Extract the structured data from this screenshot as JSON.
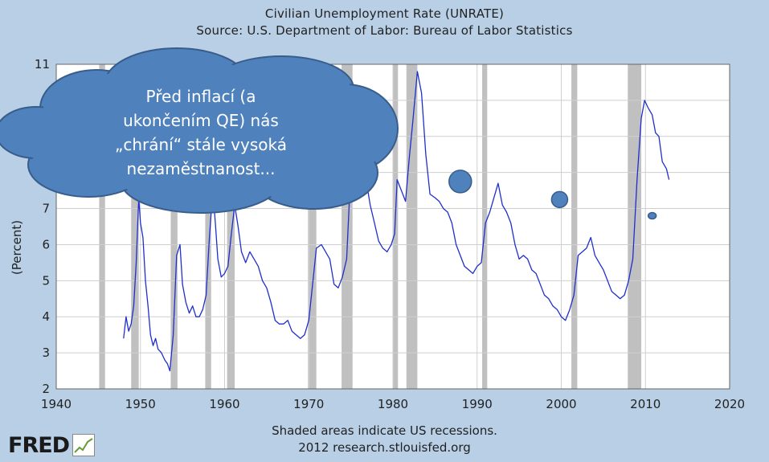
{
  "header": {
    "title": "Civilian Unemployment Rate (UNRATE)",
    "subtitle": "Source: U.S. Department of Labor: Bureau of Labor Statistics"
  },
  "footer": {
    "line1": "Shaded areas indicate US recessions.",
    "line2": "2012 research.stlouisfed.org",
    "logo_text": "FRED"
  },
  "callout": {
    "lines": [
      "Před inflací (a",
      "ukončením QE) nás",
      "„chrání“ stále vysoká",
      "nezaměstnanost..."
    ]
  },
  "colors": {
    "background": "#b8cfe6",
    "plot_background": "#ffffff",
    "line": "#1f2fcc",
    "recession_band": "#c0c0c0",
    "cloud_fill": "#4f81bd",
    "cloud_stroke": "#385d8a"
  },
  "chart_data": {
    "type": "line",
    "title": "Civilian Unemployment Rate (UNRATE)",
    "subtitle": "Source: U.S. Department of Labor: Bureau of Labor Statistics",
    "xlabel": "",
    "ylabel": "(Percent)",
    "xlim": [
      1940,
      2020
    ],
    "ylim": [
      2,
      11
    ],
    "x_ticks": [
      1940,
      1950,
      1960,
      1970,
      1980,
      1990,
      2000,
      2010,
      2020
    ],
    "y_ticks": [
      2,
      3,
      4,
      5,
      6,
      7,
      11
    ],
    "grid": true,
    "recessions": [
      [
        1945.1,
        1945.8
      ],
      [
        1948.9,
        1949.8
      ],
      [
        1953.6,
        1954.4
      ],
      [
        1957.7,
        1958.4
      ],
      [
        1960.3,
        1961.2
      ],
      [
        1969.9,
        1970.9
      ],
      [
        1973.9,
        1975.2
      ],
      [
        1980.0,
        1980.6
      ],
      [
        1981.6,
        1982.9
      ],
      [
        1990.6,
        1991.2
      ],
      [
        2001.2,
        2001.9
      ],
      [
        2007.9,
        2009.5
      ]
    ],
    "series": [
      {
        "values": [
          [
            1948.0,
            3.4
          ],
          [
            1948.3,
            4.0
          ],
          [
            1948.6,
            3.6
          ],
          [
            1948.9,
            3.8
          ],
          [
            1949.2,
            4.3
          ],
          [
            1949.5,
            5.5
          ],
          [
            1949.8,
            7.3
          ],
          [
            1950.0,
            6.6
          ],
          [
            1950.3,
            6.2
          ],
          [
            1950.6,
            5.0
          ],
          [
            1950.9,
            4.3
          ],
          [
            1951.2,
            3.5
          ],
          [
            1951.5,
            3.2
          ],
          [
            1951.8,
            3.4
          ],
          [
            1952.1,
            3.1
          ],
          [
            1952.5,
            3.0
          ],
          [
            1952.9,
            2.8
          ],
          [
            1953.2,
            2.7
          ],
          [
            1953.5,
            2.5
          ],
          [
            1953.9,
            3.5
          ],
          [
            1954.3,
            5.7
          ],
          [
            1954.7,
            6.0
          ],
          [
            1955.0,
            4.9
          ],
          [
            1955.4,
            4.4
          ],
          [
            1955.8,
            4.1
          ],
          [
            1956.2,
            4.3
          ],
          [
            1956.6,
            4.0
          ],
          [
            1957.0,
            4.0
          ],
          [
            1957.4,
            4.2
          ],
          [
            1957.8,
            4.6
          ],
          [
            1958.2,
            6.2
          ],
          [
            1958.6,
            7.5
          ],
          [
            1958.9,
            6.6
          ],
          [
            1959.2,
            5.6
          ],
          [
            1959.6,
            5.1
          ],
          [
            1960.0,
            5.2
          ],
          [
            1960.4,
            5.4
          ],
          [
            1960.8,
            6.3
          ],
          [
            1961.2,
            7.1
          ],
          [
            1961.6,
            6.5
          ],
          [
            1962.0,
            5.8
          ],
          [
            1962.5,
            5.5
          ],
          [
            1963.0,
            5.8
          ],
          [
            1963.5,
            5.6
          ],
          [
            1964.0,
            5.4
          ],
          [
            1964.5,
            5.0
          ],
          [
            1965.0,
            4.8
          ],
          [
            1965.5,
            4.4
          ],
          [
            1966.0,
            3.9
          ],
          [
            1966.5,
            3.8
          ],
          [
            1967.0,
            3.8
          ],
          [
            1967.5,
            3.9
          ],
          [
            1968.0,
            3.6
          ],
          [
            1968.5,
            3.5
          ],
          [
            1969.0,
            3.4
          ],
          [
            1969.5,
            3.5
          ],
          [
            1970.0,
            3.9
          ],
          [
            1970.5,
            5.0
          ],
          [
            1970.9,
            5.9
          ],
          [
            1971.5,
            6.0
          ],
          [
            1972.0,
            5.8
          ],
          [
            1972.5,
            5.6
          ],
          [
            1973.0,
            4.9
          ],
          [
            1973.5,
            4.8
          ],
          [
            1974.0,
            5.1
          ],
          [
            1974.5,
            5.6
          ],
          [
            1975.0,
            8.1
          ],
          [
            1975.4,
            8.9
          ],
          [
            1975.8,
            8.3
          ],
          [
            1976.3,
            7.7
          ],
          [
            1976.8,
            7.8
          ],
          [
            1977.3,
            7.1
          ],
          [
            1977.8,
            6.6
          ],
          [
            1978.3,
            6.1
          ],
          [
            1978.8,
            5.9
          ],
          [
            1979.3,
            5.8
          ],
          [
            1979.8,
            6.0
          ],
          [
            1980.2,
            6.3
          ],
          [
            1980.5,
            7.8
          ],
          [
            1981.0,
            7.5
          ],
          [
            1981.5,
            7.2
          ],
          [
            1981.9,
            8.3
          ],
          [
            1982.4,
            9.5
          ],
          [
            1982.9,
            10.8
          ],
          [
            1983.4,
            10.2
          ],
          [
            1983.9,
            8.5
          ],
          [
            1984.4,
            7.4
          ],
          [
            1985.0,
            7.3
          ],
          [
            1985.5,
            7.2
          ],
          [
            1986.0,
            7.0
          ],
          [
            1986.5,
            6.9
          ],
          [
            1987.0,
            6.6
          ],
          [
            1987.5,
            6.0
          ],
          [
            1988.0,
            5.7
          ],
          [
            1988.5,
            5.4
          ],
          [
            1989.0,
            5.3
          ],
          [
            1989.5,
            5.2
          ],
          [
            1990.0,
            5.4
          ],
          [
            1990.5,
            5.5
          ],
          [
            1991.0,
            6.6
          ],
          [
            1991.5,
            6.9
          ],
          [
            1992.0,
            7.3
          ],
          [
            1992.5,
            7.7
          ],
          [
            1993.0,
            7.1
          ],
          [
            1993.5,
            6.9
          ],
          [
            1994.0,
            6.6
          ],
          [
            1994.5,
            6.0
          ],
          [
            1995.0,
            5.6
          ],
          [
            1995.5,
            5.7
          ],
          [
            1996.0,
            5.6
          ],
          [
            1996.5,
            5.3
          ],
          [
            1997.0,
            5.2
          ],
          [
            1997.5,
            4.9
          ],
          [
            1998.0,
            4.6
          ],
          [
            1998.5,
            4.5
          ],
          [
            1999.0,
            4.3
          ],
          [
            1999.5,
            4.2
          ],
          [
            2000.0,
            4.0
          ],
          [
            2000.5,
            3.9
          ],
          [
            2001.0,
            4.2
          ],
          [
            2001.5,
            4.6
          ],
          [
            2002.0,
            5.7
          ],
          [
            2002.5,
            5.8
          ],
          [
            2003.0,
            5.9
          ],
          [
            2003.5,
            6.2
          ],
          [
            2004.0,
            5.7
          ],
          [
            2004.5,
            5.5
          ],
          [
            2005.0,
            5.3
          ],
          [
            2005.5,
            5.0
          ],
          [
            2006.0,
            4.7
          ],
          [
            2006.5,
            4.6
          ],
          [
            2007.0,
            4.5
          ],
          [
            2007.5,
            4.6
          ],
          [
            2008.0,
            5.0
          ],
          [
            2008.5,
            5.6
          ],
          [
            2009.0,
            7.8
          ],
          [
            2009.5,
            9.5
          ],
          [
            2009.9,
            10.0
          ],
          [
            2010.3,
            9.8
          ],
          [
            2010.8,
            9.6
          ],
          [
            2011.2,
            9.1
          ],
          [
            2011.6,
            9.0
          ],
          [
            2012.0,
            8.3
          ],
          [
            2012.5,
            8.1
          ],
          [
            2012.8,
            7.8
          ]
        ]
      }
    ],
    "markers": [
      {
        "x": 1988.0,
        "y": 7.75
      },
      {
        "x": 1999.8,
        "y": 7.25
      },
      {
        "x": 2010.8,
        "y": 6.8
      }
    ]
  }
}
